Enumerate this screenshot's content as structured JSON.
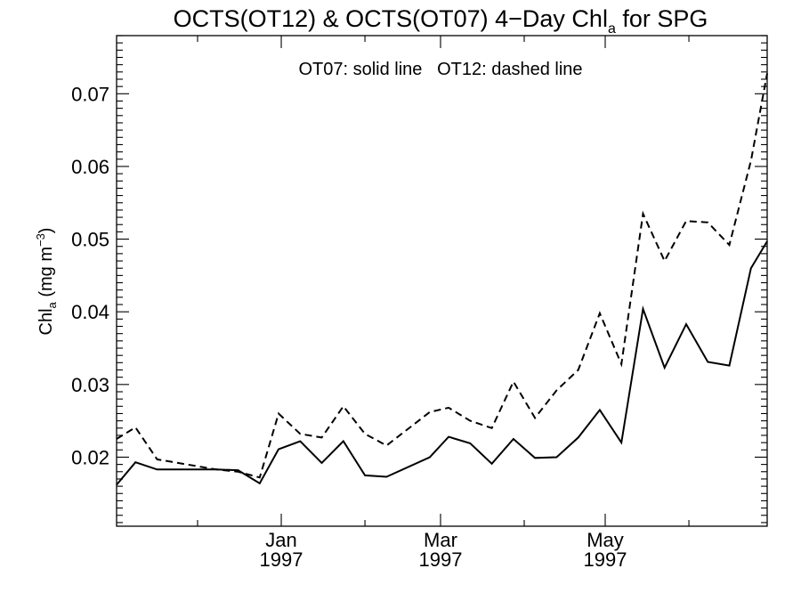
{
  "chart_data": {
    "type": "line",
    "title": {
      "main": "OCTS(OT12) & OCTS(OT07) 4−Day Chl",
      "sub": "a",
      "tail": " for SPG"
    },
    "annotation": "OT07: solid line   OT12: dashed line",
    "ylabel": {
      "main": "Chl",
      "sub": "a",
      "tail": " (mg m",
      "sup": "−3",
      "close": ")"
    },
    "xlabel": "",
    "xlim": [
      "1996-11-01",
      "1997-06-30"
    ],
    "ylim": [
      0.0105,
      0.078
    ],
    "y_ticks": [
      0.02,
      0.03,
      0.04,
      0.05,
      0.06,
      0.07
    ],
    "y_tick_labels": [
      "0.02",
      "0.03",
      "0.04",
      "0.05",
      "0.06",
      "0.07"
    ],
    "x_ticks": [
      {
        "date": "1997-01-01",
        "month": "Jan",
        "year": "1997"
      },
      {
        "date": "1997-03-01",
        "month": "Mar",
        "year": "1997"
      },
      {
        "date": "1997-05-01",
        "month": "May",
        "year": "1997"
      }
    ],
    "x_minor_ticks": [
      "1996-12-01",
      "1997-02-01",
      "1997-04-01",
      "1997-06-01"
    ],
    "series": [
      {
        "name": "OT07",
        "style": "solid",
        "color": "#000000",
        "points": [
          [
            "1996-11-01",
            0.0162
          ],
          [
            "1996-11-08",
            0.0193
          ],
          [
            "1996-11-16",
            0.0183
          ],
          [
            "1996-12-08",
            0.0183
          ],
          [
            "1996-12-16",
            0.0182
          ],
          [
            "1996-12-24",
            0.0164
          ],
          [
            "1996-12-31",
            0.0211
          ],
          [
            "1997-01-08",
            0.0222
          ],
          [
            "1997-01-16",
            0.0192
          ],
          [
            "1997-01-24",
            0.0222
          ],
          [
            "1997-02-01",
            0.0175
          ],
          [
            "1997-02-09",
            0.0173
          ],
          [
            "1997-02-25",
            0.02
          ],
          [
            "1997-03-04",
            0.0228
          ],
          [
            "1997-03-12",
            0.0219
          ],
          [
            "1997-03-20",
            0.0191
          ],
          [
            "1997-03-28",
            0.0225
          ],
          [
            "1997-04-05",
            0.0199
          ],
          [
            "1997-04-13",
            0.02
          ],
          [
            "1997-04-21",
            0.0227
          ],
          [
            "1997-04-29",
            0.0265
          ],
          [
            "1997-05-07",
            0.022
          ],
          [
            "1997-05-15",
            0.0404
          ],
          [
            "1997-05-23",
            0.0323
          ],
          [
            "1997-05-31",
            0.0383
          ],
          [
            "1997-06-08",
            0.0331
          ],
          [
            "1997-06-16",
            0.0326
          ],
          [
            "1997-06-24",
            0.046
          ],
          [
            "1997-06-30",
            0.0497
          ]
        ]
      },
      {
        "name": "OT12",
        "style": "dashed",
        "color": "#000000",
        "points": [
          [
            "1996-11-01",
            0.0225
          ],
          [
            "1996-11-08",
            0.0241
          ],
          [
            "1996-11-16",
            0.0197
          ],
          [
            "1996-12-08",
            0.0183
          ],
          [
            "1996-12-16",
            0.018
          ],
          [
            "1996-12-24",
            0.0172
          ],
          [
            "1996-12-31",
            0.026
          ],
          [
            "1997-01-08",
            0.0232
          ],
          [
            "1997-01-16",
            0.0227
          ],
          [
            "1997-01-24",
            0.027
          ],
          [
            "1997-02-01",
            0.0232
          ],
          [
            "1997-02-09",
            0.0216
          ],
          [
            "1997-02-25",
            0.0262
          ],
          [
            "1997-03-04",
            0.0268
          ],
          [
            "1997-03-12",
            0.025
          ],
          [
            "1997-03-20",
            0.024
          ],
          [
            "1997-03-28",
            0.0304
          ],
          [
            "1997-04-05",
            0.0254
          ],
          [
            "1997-04-13",
            0.0292
          ],
          [
            "1997-04-21",
            0.032
          ],
          [
            "1997-04-29",
            0.0398
          ],
          [
            "1997-05-07",
            0.0328
          ],
          [
            "1997-05-15",
            0.0535
          ],
          [
            "1997-05-23",
            0.047
          ],
          [
            "1997-05-31",
            0.0525
          ],
          [
            "1997-06-08",
            0.0523
          ],
          [
            "1997-06-16",
            0.0492
          ],
          [
            "1997-06-24",
            0.0608
          ],
          [
            "1997-06-30",
            0.0728
          ]
        ]
      }
    ]
  }
}
